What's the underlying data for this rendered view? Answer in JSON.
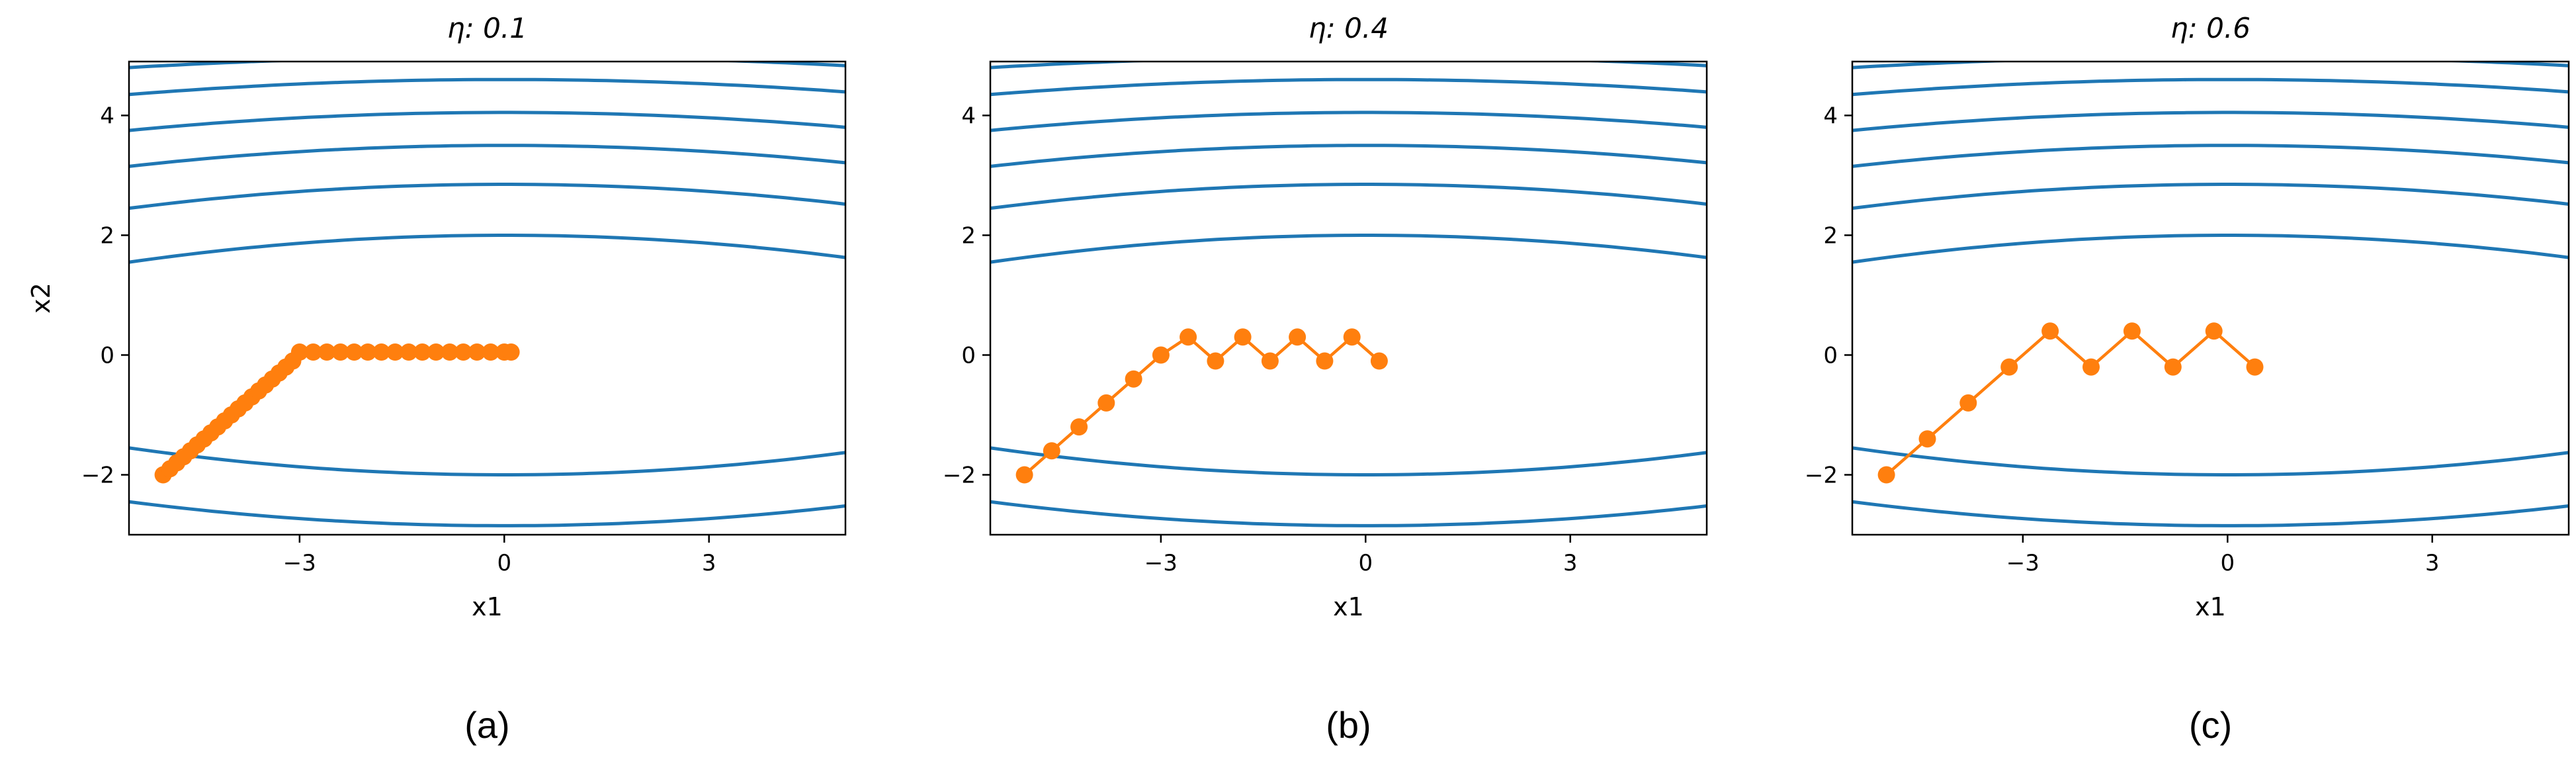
{
  "contour_color": "#1f77b4",
  "path_color": "#ff7f0e",
  "chart_data": [
    {
      "type": "line",
      "title": "η: 0.1",
      "caption": "(a)",
      "xlabel": "x1",
      "ylabel": "x2",
      "xlim": [
        -5.5,
        5.0
      ],
      "ylim": [
        -3.0,
        4.9
      ],
      "xticks": [
        -3,
        0,
        3
      ],
      "xtick_labels": [
        "−3",
        "0",
        "3"
      ],
      "yticks": [
        -2,
        0,
        2,
        4
      ],
      "ytick_labels": [
        "−2",
        "0",
        "2",
        "4"
      ],
      "grid": false,
      "contour_levels": [
        {
          "x2_at_0": 4.98,
          "x2_at_edge": 4.8
        },
        {
          "x2_at_0": 4.6,
          "x2_at_edge": 4.35
        },
        {
          "x2_at_0": 4.05,
          "x2_at_edge": 3.75
        },
        {
          "x2_at_0": 3.5,
          "x2_at_edge": 3.15
        },
        {
          "x2_at_0": 2.85,
          "x2_at_edge": 2.45
        },
        {
          "x2_at_0": 2.0,
          "x2_at_edge": 1.55
        },
        {
          "x2_at_0": -2.0,
          "x2_at_edge": -1.55
        },
        {
          "x2_at_0": -2.85,
          "x2_at_edge": -2.45
        }
      ],
      "series": [
        {
          "x": [
            -5.0,
            -4.9,
            -4.8,
            -4.7,
            -4.6,
            -4.5,
            -4.4,
            -4.3,
            -4.2,
            -4.1,
            -4.0,
            -3.9,
            -3.8,
            -3.7,
            -3.6,
            -3.5,
            -3.4,
            -3.3,
            -3.2,
            -3.1,
            -3.0,
            -2.8,
            -2.6,
            -2.4,
            -2.2,
            -2.0,
            -1.8,
            -1.6,
            -1.4,
            -1.2,
            -1.0,
            -0.8,
            -0.6,
            -0.4,
            -0.2,
            0.0,
            0.1
          ],
          "y": [
            -2.0,
            -1.9,
            -1.8,
            -1.7,
            -1.6,
            -1.5,
            -1.4,
            -1.3,
            -1.2,
            -1.1,
            -1.0,
            -0.9,
            -0.8,
            -0.7,
            -0.6,
            -0.5,
            -0.4,
            -0.3,
            -0.2,
            -0.1,
            0.05,
            0.05,
            0.05,
            0.05,
            0.05,
            0.05,
            0.05,
            0.05,
            0.05,
            0.05,
            0.05,
            0.05,
            0.05,
            0.05,
            0.05,
            0.05,
            0.05
          ]
        }
      ]
    },
    {
      "type": "line",
      "title": "η: 0.4",
      "caption": "(b)",
      "xlabel": "x1",
      "ylabel": "",
      "xlim": [
        -5.5,
        5.0
      ],
      "ylim": [
        -3.0,
        4.9
      ],
      "xticks": [
        -3,
        0,
        3
      ],
      "xtick_labels": [
        "−3",
        "0",
        "3"
      ],
      "yticks": [
        -2,
        0,
        2,
        4
      ],
      "ytick_labels": [
        "−2",
        "0",
        "2",
        "4"
      ],
      "grid": false,
      "series": [
        {
          "x": [
            -5.0,
            -4.6,
            -4.2,
            -3.8,
            -3.4,
            -3.0,
            -2.6,
            -2.2,
            -1.8,
            -1.4,
            -1.0,
            -0.6,
            -0.2,
            0.2
          ],
          "y": [
            -2.0,
            -1.6,
            -1.2,
            -0.8,
            -0.4,
            0.0,
            0.3,
            -0.1,
            0.3,
            -0.1,
            0.3,
            -0.1,
            0.3,
            -0.1
          ]
        }
      ]
    },
    {
      "type": "line",
      "title": "η: 0.6",
      "caption": "(c)",
      "xlabel": "x1",
      "ylabel": "",
      "xlim": [
        -5.5,
        5.0
      ],
      "ylim": [
        -3.0,
        4.9
      ],
      "xticks": [
        -3,
        0,
        3
      ],
      "xtick_labels": [
        "−3",
        "0",
        "3"
      ],
      "yticks": [
        -2,
        0,
        2,
        4
      ],
      "ytick_labels": [
        "−2",
        "0",
        "2",
        "4"
      ],
      "grid": false,
      "series": [
        {
          "x": [
            -5.0,
            -4.4,
            -3.8,
            -3.2,
            -2.6,
            -2.0,
            -1.4,
            -0.8,
            -0.2,
            0.4
          ],
          "y": [
            -2.0,
            -1.4,
            -0.8,
            -0.2,
            0.4,
            -0.2,
            0.4,
            -0.2,
            0.4,
            -0.2
          ]
        }
      ]
    }
  ]
}
